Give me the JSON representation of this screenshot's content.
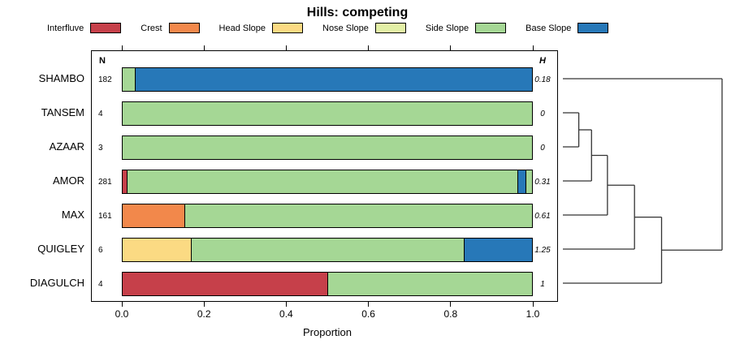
{
  "title": "Hills: competing",
  "legend": [
    {
      "label": "Interfluve",
      "color": "#C6404A"
    },
    {
      "label": "Crest",
      "color": "#F2884B"
    },
    {
      "label": "Head Slope",
      "color": "#FBDA83"
    },
    {
      "label": "Nose Slope",
      "color": "#E3F0A6"
    },
    {
      "label": "Side Slope",
      "color": "#A5D795"
    },
    {
      "label": "Base Slope",
      "color": "#2778B8"
    }
  ],
  "chart_data": {
    "type": "bar",
    "variant": "horizontal-stacked-proportion",
    "title": "Hills: competing",
    "xlabel": "Proportion",
    "xlim": [
      0,
      1
    ],
    "grid": false,
    "legend_position": "top",
    "categories": [
      "Interfluve",
      "Crest",
      "Head Slope",
      "Nose Slope",
      "Side Slope",
      "Base Slope"
    ],
    "n_header": "N",
    "h_header": "H",
    "xticks": [
      {
        "label": "0.0",
        "value": 0.0
      },
      {
        "label": "0.2",
        "value": 0.2
      },
      {
        "label": "0.4",
        "value": 0.4
      },
      {
        "label": "0.6",
        "value": 0.6
      },
      {
        "label": "0.8",
        "value": 0.8
      },
      {
        "label": "1.0",
        "value": 1.0
      }
    ],
    "rows": [
      {
        "label": "SHAMBO",
        "n": "182",
        "h": "0.18",
        "segments": [
          {
            "category": "Side Slope",
            "value": 0.03
          },
          {
            "category": "Base Slope",
            "value": 0.97
          }
        ]
      },
      {
        "label": "TANSEM",
        "n": "4",
        "h": "0",
        "segments": [
          {
            "category": "Side Slope",
            "value": 1
          }
        ]
      },
      {
        "label": "AZAAR",
        "n": "3",
        "h": "0",
        "segments": [
          {
            "category": "Side Slope",
            "value": 1
          }
        ]
      },
      {
        "label": "AMOR",
        "n": "281",
        "h": "0.31",
        "segments": [
          {
            "category": "Interfluve",
            "value": 0.01
          },
          {
            "category": "Side Slope",
            "value": 0.955
          },
          {
            "category": "Base Slope",
            "value": 0.02
          },
          {
            "category": "Side Slope",
            "value": 0.015
          }
        ]
      },
      {
        "label": "MAX",
        "n": "161",
        "h": "0.61",
        "segments": [
          {
            "category": "Crest",
            "value": 0.15
          },
          {
            "category": "Side Slope",
            "value": 0.85
          }
        ]
      },
      {
        "label": "QUIGLEY",
        "n": "6",
        "h": "1.25",
        "segments": [
          {
            "category": "Head Slope",
            "value": 0.167
          },
          {
            "category": "Side Slope",
            "value": 0.666
          },
          {
            "category": "Base Slope",
            "value": 0.167
          }
        ]
      },
      {
        "label": "DIAGULCH",
        "n": "4",
        "h": "1",
        "segments": [
          {
            "category": "Interfluve",
            "value": 0.5
          },
          {
            "category": "Side Slope",
            "value": 0.5
          }
        ]
      }
    ],
    "dendrogram": {
      "orientation": "right",
      "segments": [
        [
          0,
          0,
          1,
          0
        ],
        [
          0,
          1,
          0.1,
          1
        ],
        [
          0,
          2,
          0.1,
          2
        ],
        [
          0.1,
          1,
          0.1,
          2
        ],
        [
          0.1,
          1.5,
          0.18,
          1.5
        ],
        [
          0,
          3,
          0.18,
          3
        ],
        [
          0.18,
          1.5,
          0.18,
          3
        ],
        [
          0.18,
          2.25,
          0.28,
          2.25
        ],
        [
          0,
          4,
          0.28,
          4
        ],
        [
          0.28,
          2.25,
          0.28,
          4
        ],
        [
          0.28,
          3.125,
          0.45,
          3.125
        ],
        [
          0,
          5,
          0.45,
          5
        ],
        [
          0.45,
          3.125,
          0.45,
          5
        ],
        [
          0.45,
          4.0625,
          0.62,
          4.0625
        ],
        [
          0,
          6,
          0.62,
          6
        ],
        [
          0.62,
          4.0625,
          0.62,
          6
        ],
        [
          0.62,
          5.03,
          1,
          5.03
        ],
        [
          1,
          0,
          1,
          5.03
        ]
      ]
    }
  }
}
